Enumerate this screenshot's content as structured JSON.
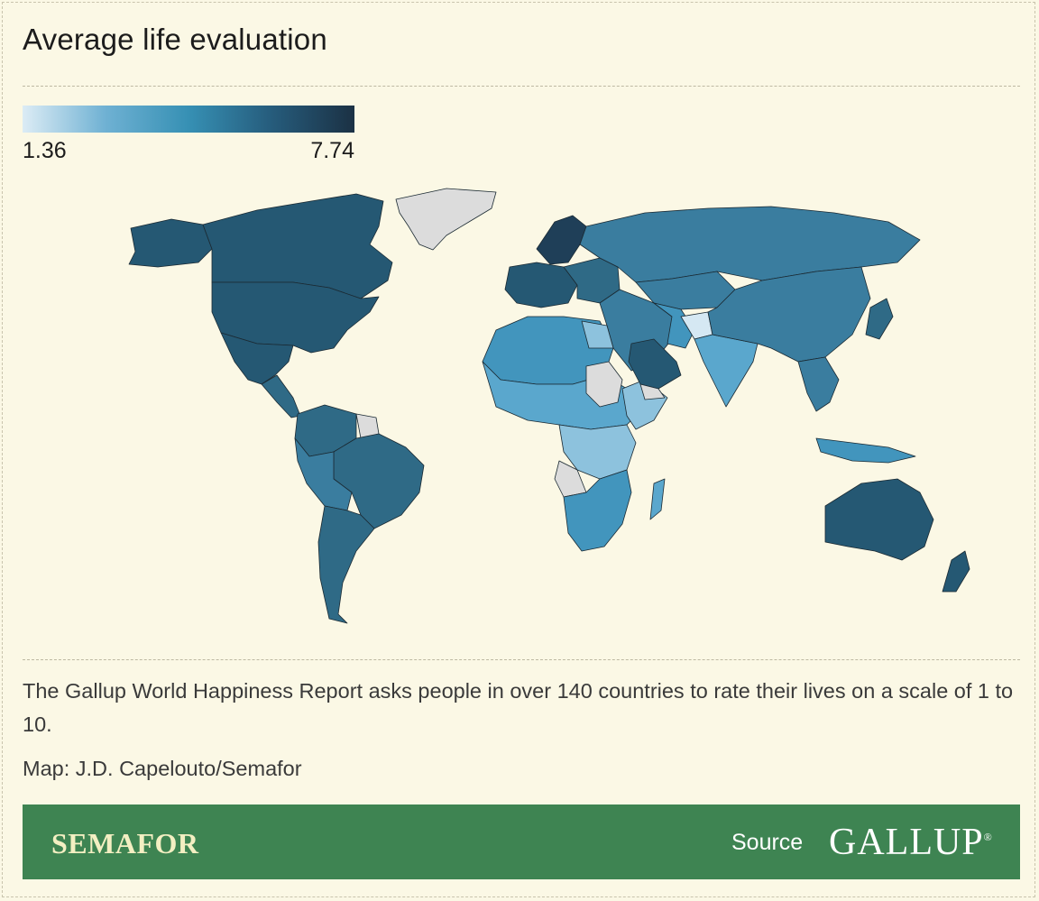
{
  "title": "Average life evaluation",
  "legend": {
    "min": "1.36",
    "max": "7.74",
    "colors": [
      "#dcecf5",
      "#6fb1d3",
      "#3690b4",
      "#265c7c",
      "#1b3144"
    ]
  },
  "map_colors": {
    "no_data": "#dcdcdc",
    "very_low": "#d5e8f3",
    "low": "#8dc2dd",
    "mid_low": "#5aa7cd",
    "mid": "#4295bd",
    "mid_high": "#3a7d9f",
    "high": "#2f6a86",
    "very_high": "#255873",
    "top": "#1f3f58"
  },
  "description": "The Gallup World Happiness Report asks people in over 140 countries to rate their lives on a scale of 1 to 10.",
  "credit": "Map: J.D. Capelouto/Semafor",
  "footer": {
    "brand": "SEMAFOR",
    "source_label": "Source",
    "source_name": "GALLUP",
    "source_mark": "®"
  }
}
